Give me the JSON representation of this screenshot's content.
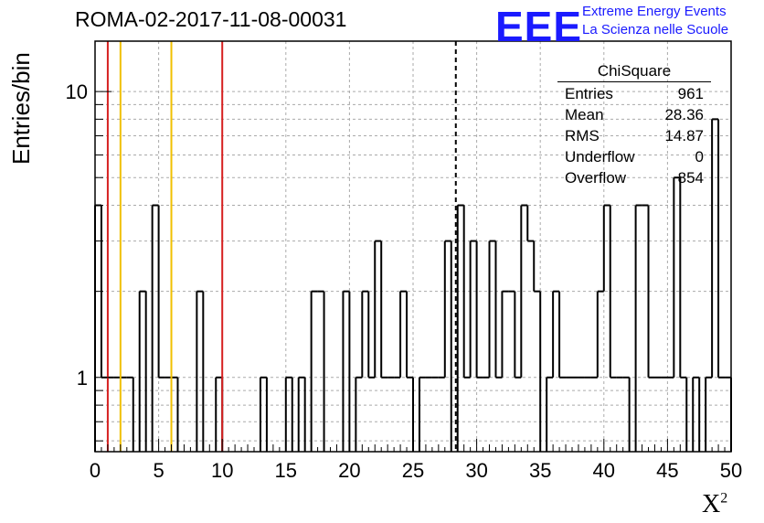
{
  "chart_data": {
    "type": "bar",
    "title": "ROMA-02-2017-11-08-00031",
    "ylabel": "Entries/bin",
    "xlabel": "X",
    "xlabel_sup": "2",
    "xlim": [
      0,
      50
    ],
    "ylim": [
      0.55,
      15
    ],
    "y_scale": "log",
    "grid": true,
    "bin_width": 0.5,
    "x_ticks": [
      "0",
      "5",
      "10",
      "15",
      "20",
      "25",
      "30",
      "35",
      "40",
      "45",
      "50"
    ],
    "y_ticks": [
      {
        "value": 1,
        "label": "1"
      },
      {
        "value": 10,
        "label": "10"
      }
    ],
    "bins": [
      {
        "x": 0.0,
        "y": 4
      },
      {
        "x": 0.5,
        "y": 1
      },
      {
        "x": 1.0,
        "y": 1
      },
      {
        "x": 1.5,
        "y": 1
      },
      {
        "x": 2.0,
        "y": 1
      },
      {
        "x": 2.5,
        "y": 1
      },
      {
        "x": 3.5,
        "y": 2
      },
      {
        "x": 4.5,
        "y": 4
      },
      {
        "x": 5.0,
        "y": 1
      },
      {
        "x": 5.5,
        "y": 1
      },
      {
        "x": 6.0,
        "y": 1
      },
      {
        "x": 8.0,
        "y": 2
      },
      {
        "x": 9.5,
        "y": 1
      },
      {
        "x": 13.0,
        "y": 1
      },
      {
        "x": 15.0,
        "y": 1
      },
      {
        "x": 16.0,
        "y": 1
      },
      {
        "x": 17.0,
        "y": 2
      },
      {
        "x": 17.5,
        "y": 2
      },
      {
        "x": 19.5,
        "y": 2
      },
      {
        "x": 20.5,
        "y": 1
      },
      {
        "x": 21.0,
        "y": 2
      },
      {
        "x": 21.5,
        "y": 1
      },
      {
        "x": 22.0,
        "y": 3
      },
      {
        "x": 22.5,
        "y": 1
      },
      {
        "x": 23.0,
        "y": 1
      },
      {
        "x": 23.5,
        "y": 1
      },
      {
        "x": 24.0,
        "y": 2
      },
      {
        "x": 24.5,
        "y": 1
      },
      {
        "x": 25.5,
        "y": 1
      },
      {
        "x": 26.0,
        "y": 1
      },
      {
        "x": 26.5,
        "y": 1
      },
      {
        "x": 27.0,
        "y": 1
      },
      {
        "x": 27.5,
        "y": 3
      },
      {
        "x": 28.5,
        "y": 4
      },
      {
        "x": 29.0,
        "y": 1
      },
      {
        "x": 29.5,
        "y": 3
      },
      {
        "x": 30.0,
        "y": 1
      },
      {
        "x": 30.5,
        "y": 1
      },
      {
        "x": 31.0,
        "y": 3
      },
      {
        "x": 31.5,
        "y": 1
      },
      {
        "x": 32.0,
        "y": 2
      },
      {
        "x": 32.5,
        "y": 2
      },
      {
        "x": 33.0,
        "y": 1
      },
      {
        "x": 33.5,
        "y": 4
      },
      {
        "x": 34.0,
        "y": 3
      },
      {
        "x": 34.5,
        "y": 2
      },
      {
        "x": 35.5,
        "y": 1
      },
      {
        "x": 36.0,
        "y": 2
      },
      {
        "x": 36.5,
        "y": 1
      },
      {
        "x": 37.0,
        "y": 1
      },
      {
        "x": 37.5,
        "y": 1
      },
      {
        "x": 38.0,
        "y": 1
      },
      {
        "x": 38.5,
        "y": 1
      },
      {
        "x": 39.0,
        "y": 1
      },
      {
        "x": 39.5,
        "y": 2
      },
      {
        "x": 40.0,
        "y": 4
      },
      {
        "x": 40.5,
        "y": 1
      },
      {
        "x": 41.0,
        "y": 1
      },
      {
        "x": 41.5,
        "y": 1
      },
      {
        "x": 42.5,
        "y": 4
      },
      {
        "x": 43.0,
        "y": 4
      },
      {
        "x": 43.5,
        "y": 1
      },
      {
        "x": 44.0,
        "y": 1
      },
      {
        "x": 44.5,
        "y": 1
      },
      {
        "x": 45.0,
        "y": 1
      },
      {
        "x": 45.5,
        "y": 5
      },
      {
        "x": 46.0,
        "y": 1
      },
      {
        "x": 47.0,
        "y": 1
      },
      {
        "x": 48.0,
        "y": 1
      },
      {
        "x": 48.5,
        "y": 8
      },
      {
        "x": 49.0,
        "y": 1
      },
      {
        "x": 49.5,
        "y": 1
      }
    ],
    "vertical_lines": [
      {
        "x": 1,
        "color": "#d62020",
        "style": "solid"
      },
      {
        "x": 2,
        "color": "#f0c000",
        "style": "solid"
      },
      {
        "x": 6,
        "color": "#f0c000",
        "style": "solid"
      },
      {
        "x": 10,
        "color": "#d62020",
        "style": "solid"
      },
      {
        "x": 28.36,
        "color": "#000000",
        "style": "dashed"
      }
    ],
    "stats_box": {
      "title": "ChiSquare",
      "rows": [
        {
          "label": "Entries",
          "value": "961"
        },
        {
          "label": "Mean",
          "value": "28.36"
        },
        {
          "label": "RMS",
          "value": "14.87"
        },
        {
          "label": "Underflow",
          "value": "0"
        },
        {
          "label": "Overflow",
          "value": "854"
        }
      ]
    }
  },
  "logo": {
    "text": "EEE",
    "line1": "Extreme Energy Events",
    "line2": "La Scienza nelle Scuole",
    "color": "#1a1aff"
  }
}
